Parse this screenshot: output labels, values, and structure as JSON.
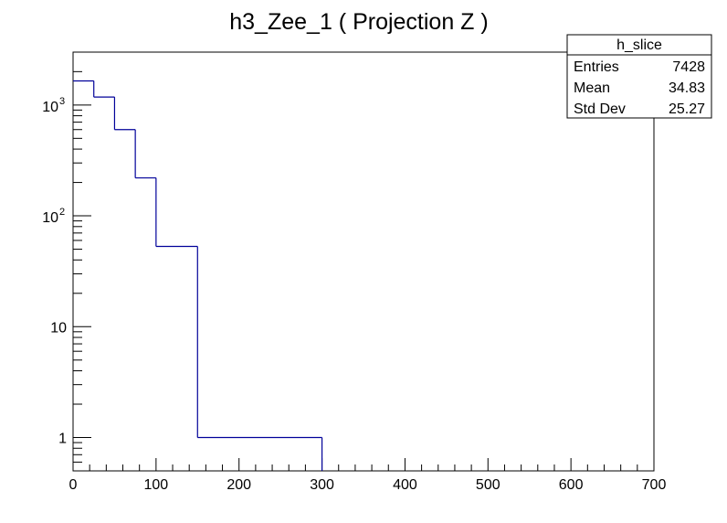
{
  "chart_data": {
    "type": "histogram",
    "title": "h3_Zee_1 ( Projection Z )",
    "xlabel": "",
    "ylabel": "",
    "yscale": "log",
    "xlim": [
      0,
      700
    ],
    "ylim": [
      0.5,
      3000
    ],
    "x_ticks": [
      0,
      100,
      200,
      300,
      400,
      500,
      600,
      700
    ],
    "y_ticks": [
      {
        "value": 1000,
        "base": "10",
        "exp": "3"
      },
      {
        "value": 100,
        "base": "10",
        "exp": "2"
      },
      {
        "value": 10,
        "base": "10",
        "exp": ""
      },
      {
        "value": 1,
        "base": "1",
        "exp": ""
      }
    ],
    "bins": [
      {
        "x0": 0,
        "x1": 25,
        "value": 1650
      },
      {
        "x0": 25,
        "x1": 50,
        "value": 1180
      },
      {
        "x0": 50,
        "x1": 75,
        "value": 600
      },
      {
        "x0": 75,
        "x1": 100,
        "value": 220
      },
      {
        "x0": 100,
        "x1": 150,
        "value": 53
      },
      {
        "x0": 150,
        "x1": 300,
        "value": 1
      }
    ],
    "line_color": "#000099",
    "stats_box": {
      "title": "h_slice",
      "rows": [
        {
          "label": "Entries",
          "value": "7428"
        },
        {
          "label": "Mean",
          "value": "34.83"
        },
        {
          "label": "Std Dev",
          "value": "25.27"
        }
      ]
    }
  }
}
